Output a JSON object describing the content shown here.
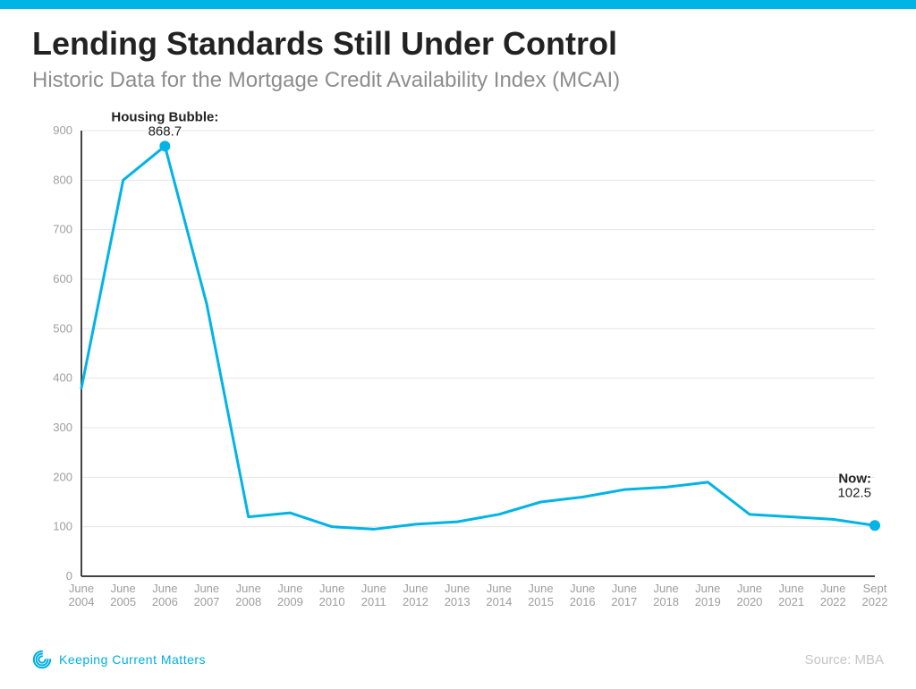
{
  "topbar_color": "#00b4e6",
  "title": "Lending Standards Still Under Control",
  "title_color": "#222222",
  "subtitle": "Historic Data for the Mortgage Credit Availability Index (MCAI)",
  "subtitle_color": "#8d8d8d",
  "chart": {
    "type": "line",
    "line_color": "#00b4e6",
    "line_width": 3,
    "marker_color": "#00b4e6",
    "marker_radius": 6,
    "grid_color": "#e4e4e4",
    "axis_color": "#444444",
    "tick_label_color": "#9e9e9e",
    "tick_label_fontsize": 13,
    "background_color": "#ffffff",
    "ylim": [
      0,
      900
    ],
    "ytick_step": 100,
    "x_labels": [
      "June\n2004",
      "June\n2005",
      "June\n2006",
      "June\n2007",
      "June\n2008",
      "June\n2009",
      "June\n2010",
      "June\n2011",
      "June\n2012",
      "June\n2013",
      "June\n2014",
      "June\n2015",
      "June\n2016",
      "June\n2017",
      "June\n2018",
      "June\n2019",
      "June\n2020",
      "June\n2021",
      "June\n2022",
      "Sept\n2022"
    ],
    "values": [
      380,
      800,
      868.7,
      550,
      120,
      128,
      100,
      95,
      105,
      110,
      125,
      150,
      160,
      175,
      180,
      190,
      125,
      120,
      115,
      102.5
    ],
    "markers_at_index": [
      2,
      19
    ],
    "annotations": [
      {
        "index": 2,
        "label": "Housing Bubble:",
        "value": "868.7",
        "pos": "above",
        "bold_label": true
      },
      {
        "index": 19,
        "label": "Now:",
        "value": "102.5",
        "pos": "above-right",
        "bold_label": true
      }
    ]
  },
  "brand": {
    "name_1": "Keeping",
    "name_2": "Current",
    "name_3": "Matters",
    "color": "#00aee5"
  },
  "source": "Source: MBA",
  "source_color": "#c6c6c6"
}
